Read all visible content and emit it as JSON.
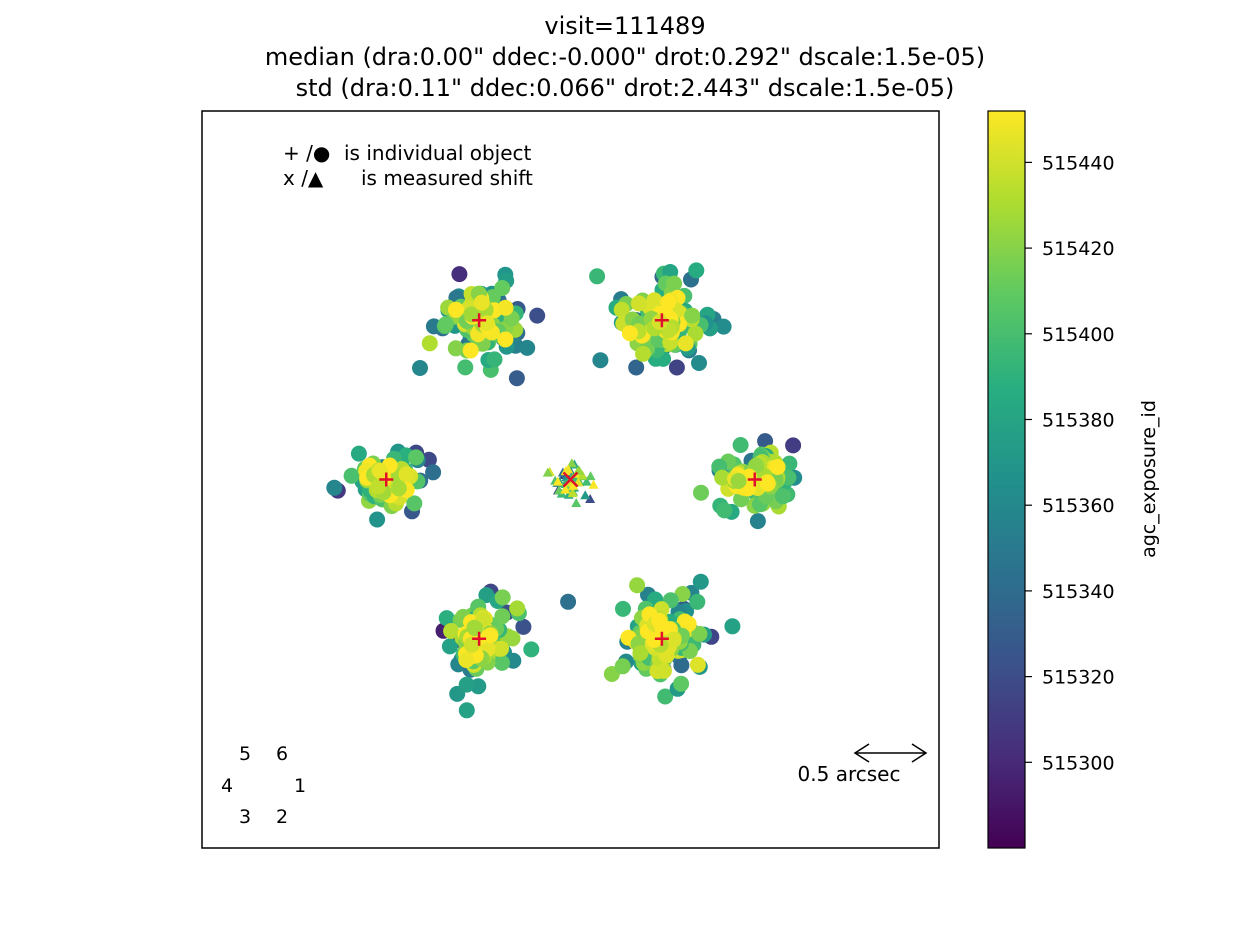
{
  "chart_data": {
    "type": "scatter",
    "title_lines": [
      "visit=111489",
      "median (dra:0.00\" ddec:-0.000\" drot:0.292\" dscale:1.5e-05)",
      "std (dra:0.11\" ddec:0.066\" drot:2.443\" dscale:1.5e-05)"
    ],
    "legend_lines": [
      {
        "text": "is individual object",
        "symbols": "+ /●"
      },
      {
        "text": "is measured shift",
        "symbols": "x /▲"
      }
    ],
    "axes": {
      "xlim": [
        -2.5,
        2.5
      ],
      "ylim": [
        -2.5,
        2.5
      ],
      "grid": false,
      "ticks_visible": false
    },
    "colorbar": {
      "label": "agc_exposure_id",
      "range": [
        515280,
        515452
      ],
      "ticks": [
        515300,
        515320,
        515340,
        515360,
        515380,
        515400,
        515420,
        515440
      ],
      "colormap": "viridis"
    },
    "scale_bar": {
      "label": "0.5 arcsec",
      "length_arcsec": 0.5
    },
    "camera_layout": [
      {
        "label": "5",
        "col": 1,
        "row": 0
      },
      {
        "label": "6",
        "col": 2,
        "row": 0
      },
      {
        "label": "4",
        "col": 0,
        "row": 1
      },
      {
        "label": "1",
        "col": 3,
        "row": 1
      },
      {
        "label": "3",
        "col": 1,
        "row": 2
      },
      {
        "label": "2",
        "col": 2,
        "row": 2
      }
    ],
    "clusters": [
      {
        "camera": 1,
        "center": [
          1.25,
          0.0
        ],
        "spread": [
          0.22,
          0.18
        ],
        "count": 110
      },
      {
        "camera": 6,
        "center": [
          0.62,
          1.08
        ],
        "spread": [
          0.24,
          0.22
        ],
        "count": 120
      },
      {
        "camera": 5,
        "center": [
          -0.62,
          1.08
        ],
        "spread": [
          0.22,
          0.22
        ],
        "count": 120
      },
      {
        "camera": 4,
        "center": [
          -1.25,
          0.0
        ],
        "spread": [
          0.18,
          0.17
        ],
        "count": 90
      },
      {
        "camera": 3,
        "center": [
          -0.62,
          -1.08
        ],
        "spread": [
          0.2,
          0.22
        ],
        "count": 120
      },
      {
        "camera": 2,
        "center": [
          0.62,
          -1.08
        ],
        "spread": [
          0.24,
          0.25
        ],
        "count": 120
      }
    ],
    "shift_cluster": {
      "center": [
        0.0,
        0.0
      ],
      "spread": [
        0.12,
        0.1
      ],
      "count": 60
    },
    "markers": {
      "object_marker_color": "#e0102a",
      "shift_marker_color": "#e0102a"
    }
  }
}
